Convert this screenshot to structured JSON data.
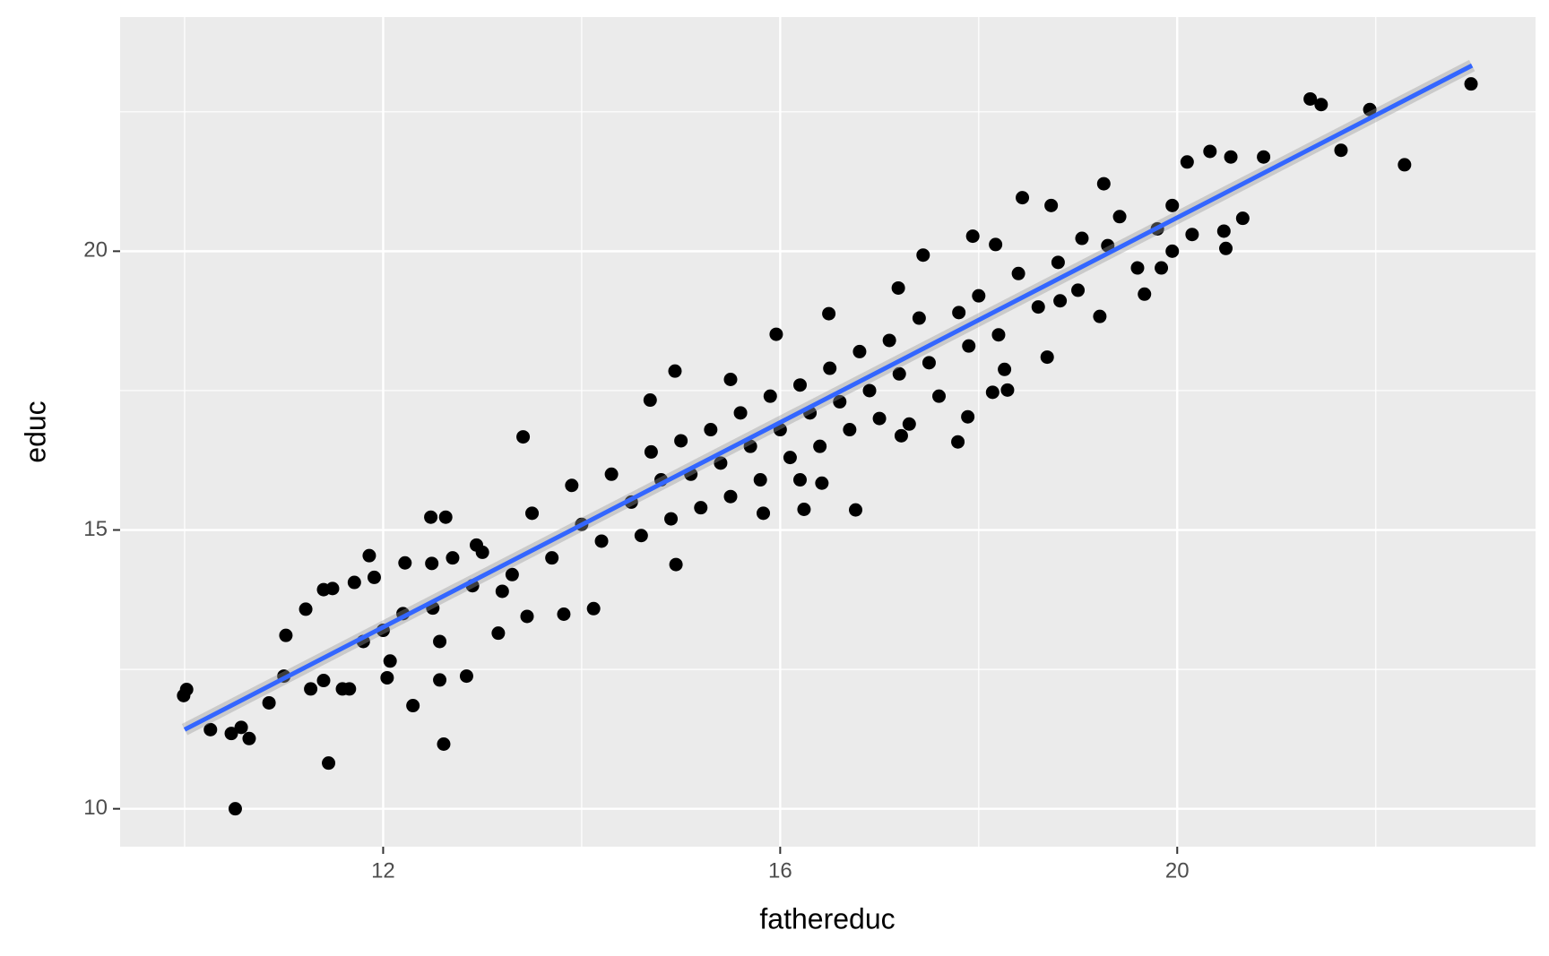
{
  "chart_data": {
    "type": "scatter",
    "x_label": "fathereduc",
    "y_label": "educ",
    "color": "#000000",
    "x": [
      9.99,
      10.02,
      10.26,
      10.51,
      10.47,
      10.57,
      10.65,
      10.85,
      11.45,
      12.61,
      12.3,
      12.57,
      12.84,
      13.41,
      16.76,
      22.29,
      22.96,
      21.34,
      21.45,
      21.94,
      21.65,
      20.87,
      20.54,
      20.33,
      20.1,
      20.66,
      20.49,
      20.47,
      20.15,
      19.26,
      18.44,
      18.73,
      19.95,
      19.95,
      19.84,
      19.67,
      19.22,
      18.69,
      18.29,
      17.79,
      17.89,
      17.22,
      16.42,
      16.24,
      15.83,
      14.95,
      14.12,
      13.82,
      13.45,
      13.16,
      12.57,
      12.04,
      12.07,
      11.66,
      11.59,
      11.27,
      11.4,
      11.0,
      11.02,
      11.22,
      11.4,
      11.49,
      11.86,
      11.71,
      11.91,
      12.22,
      12.48,
      12.63,
      12.49,
      12.94,
      14.69,
      14.94,
      15.96,
      16.49,
      17.19,
      17.44,
      17.94,
      18.17,
      19.04,
      19.42,
      18.82,
      18.26,
      18.14,
      13.0,
      13.3,
      13.5,
      13.7,
      13.9,
      14.0,
      14.2,
      14.3,
      14.5,
      14.6,
      14.7,
      14.8,
      14.9,
      15.0,
      15.1,
      15.2,
      15.3,
      15.4,
      15.5,
      15.6,
      15.7,
      15.8,
      15.9,
      16.0,
      16.1,
      16.2,
      16.3,
      16.4,
      16.5,
      16.6,
      16.7,
      16.8,
      16.9,
      17.0,
      17.1,
      17.2,
      17.4,
      17.5,
      17.6,
      17.8,
      17.9,
      18.0,
      18.2,
      18.4,
      18.6,
      18.8,
      19.0,
      19.3,
      19.6,
      19.8,
      13.2,
      12.9,
      12.7,
      12.5,
      12.2,
      12.0,
      11.8,
      15.5,
      16.2,
      17.3
    ],
    "values": [
      12.03,
      12.14,
      11.42,
      10.0,
      11.35,
      11.46,
      11.26,
      11.9,
      10.82,
      11.16,
      11.85,
      12.31,
      12.38,
      16.67,
      15.36,
      21.55,
      23.0,
      22.73,
      22.63,
      22.54,
      21.81,
      21.69,
      21.69,
      21.79,
      21.6,
      20.59,
      20.05,
      20.36,
      20.3,
      21.21,
      20.96,
      20.82,
      20.82,
      20.0,
      19.7,
      19.23,
      18.83,
      18.1,
      17.51,
      16.58,
      17.03,
      16.69,
      15.84,
      15.37,
      15.3,
      14.38,
      13.59,
      13.49,
      13.45,
      13.15,
      13.0,
      12.35,
      12.65,
      12.15,
      12.15,
      12.15,
      12.3,
      12.38,
      13.11,
      13.58,
      13.93,
      13.95,
      14.54,
      14.06,
      14.15,
      14.41,
      15.23,
      15.23,
      14.4,
      14.73,
      17.33,
      17.85,
      18.51,
      18.88,
      19.34,
      19.93,
      20.27,
      20.12,
      20.23,
      20.62,
      19.11,
      17.88,
      17.47,
      14.6,
      14.2,
      15.3,
      14.5,
      15.8,
      15.1,
      14.8,
      16.0,
      15.5,
      14.9,
      16.4,
      15.9,
      15.2,
      16.6,
      16.0,
      15.4,
      16.8,
      16.2,
      15.6,
      17.1,
      16.5,
      15.9,
      17.4,
      16.8,
      16.3,
      17.6,
      17.1,
      16.5,
      17.9,
      17.3,
      16.8,
      18.2,
      17.5,
      17.0,
      18.4,
      17.8,
      18.8,
      18.0,
      17.4,
      18.9,
      18.3,
      19.2,
      18.5,
      19.6,
      19.0,
      19.8,
      19.3,
      20.1,
      19.7,
      20.4,
      13.9,
      14.0,
      14.5,
      13.6,
      13.5,
      13.2,
      13.0,
      17.7,
      15.9,
      16.9
    ],
    "fit": {
      "color": "#3366ff",
      "x": [
        10,
        22.97
      ],
      "values": [
        11.42,
        23.33
      ]
    },
    "xlim": [
      9.35,
      23.61
    ],
    "ylim": [
      9.32,
      24.2
    ],
    "xticks": [
      12,
      16,
      20
    ],
    "yticks": [
      10,
      15,
      20
    ],
    "xminor": [
      10,
      14,
      18,
      22
    ],
    "yminor": [
      12.5,
      17.5,
      22.5
    ],
    "grid": true
  }
}
